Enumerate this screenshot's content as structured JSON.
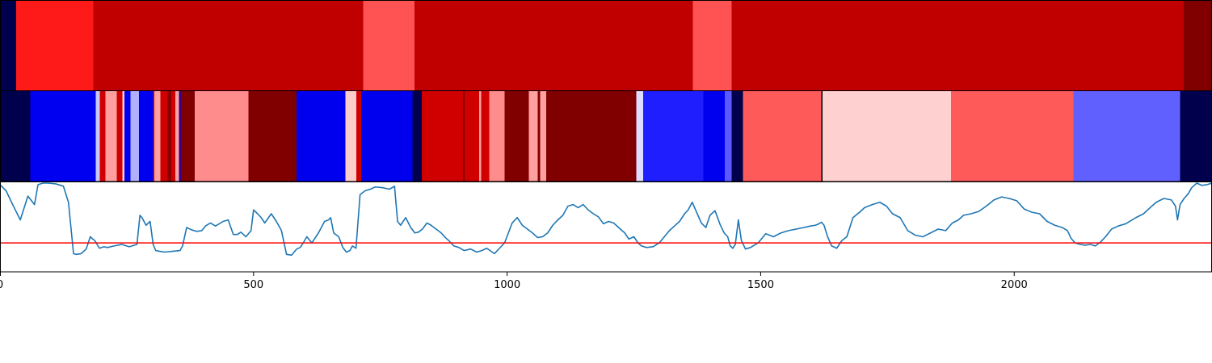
{
  "colors": {
    "line": "#1f77b4",
    "threshold": "#ff0000"
  },
  "chart_data": {
    "type": "heatmap",
    "xlim": [
      0,
      2390
    ],
    "x_ticks": [
      0,
      500,
      1000,
      1500,
      2000
    ],
    "x_tick_labels": [
      "0",
      "500",
      "1000",
      "1500",
      "2000"
    ],
    "strips": [
      {
        "segments": [
          {
            "start": 0,
            "end": 32,
            "color": "#00004c"
          },
          {
            "start": 32,
            "end": 184,
            "color": "#ff1a1a"
          },
          {
            "start": 184,
            "end": 716,
            "color": "#c00000"
          },
          {
            "start": 716,
            "end": 817,
            "color": "#ff5252"
          },
          {
            "start": 817,
            "end": 1366,
            "color": "#c00000"
          },
          {
            "start": 1366,
            "end": 1443,
            "color": "#ff5252"
          },
          {
            "start": 1443,
            "end": 2334,
            "color": "#c00000"
          },
          {
            "start": 2334,
            "end": 2390,
            "color": "#800000"
          }
        ]
      },
      {
        "segments": [
          {
            "start": 0,
            "end": 60,
            "color": "#00004c"
          },
          {
            "start": 60,
            "end": 189,
            "color": "#0000f0"
          },
          {
            "start": 189,
            "end": 197,
            "color": "#c8c8ff"
          },
          {
            "start": 197,
            "end": 208,
            "color": "#d00000"
          },
          {
            "start": 208,
            "end": 230,
            "color": "#ffa0a0"
          },
          {
            "start": 230,
            "end": 241,
            "color": "#d00000"
          },
          {
            "start": 241,
            "end": 245,
            "color": "#ffd0d0"
          },
          {
            "start": 245,
            "end": 257,
            "color": "#0000f0"
          },
          {
            "start": 257,
            "end": 274,
            "color": "#b0b0ff"
          },
          {
            "start": 274,
            "end": 302,
            "color": "#0000f0"
          },
          {
            "start": 302,
            "end": 304,
            "color": "#d00000"
          },
          {
            "start": 304,
            "end": 316,
            "color": "#ffa0a0"
          },
          {
            "start": 316,
            "end": 331,
            "color": "#d00000"
          },
          {
            "start": 331,
            "end": 338,
            "color": "#8a0000"
          },
          {
            "start": 338,
            "end": 346,
            "color": "#d00000"
          },
          {
            "start": 346,
            "end": 353,
            "color": "#ffa0a0"
          },
          {
            "start": 353,
            "end": 356,
            "color": "#0000f0"
          },
          {
            "start": 356,
            "end": 384,
            "color": "#800000"
          },
          {
            "start": 384,
            "end": 490,
            "color": "#ff8c8c"
          },
          {
            "start": 490,
            "end": 585,
            "color": "#800000"
          },
          {
            "start": 585,
            "end": 681,
            "color": "#0000ee"
          },
          {
            "start": 681,
            "end": 703,
            "color": "#ffcccc"
          },
          {
            "start": 703,
            "end": 712,
            "color": "#d00000"
          },
          {
            "start": 712,
            "end": 813,
            "color": "#0000ee"
          },
          {
            "start": 813,
            "end": 832,
            "color": "#00004c"
          },
          {
            "start": 832,
            "end": 913,
            "color": "#d00000"
          },
          {
            "start": 913,
            "end": 916,
            "color": "#800000"
          },
          {
            "start": 916,
            "end": 945,
            "color": "#d00000"
          },
          {
            "start": 945,
            "end": 949,
            "color": "#ffa0a0"
          },
          {
            "start": 949,
            "end": 965,
            "color": "#d00000"
          },
          {
            "start": 965,
            "end": 995,
            "color": "#ff8c8c"
          },
          {
            "start": 995,
            "end": 1043,
            "color": "#800000"
          },
          {
            "start": 1043,
            "end": 1060,
            "color": "#ffa0a0"
          },
          {
            "start": 1060,
            "end": 1065,
            "color": "#800000"
          },
          {
            "start": 1065,
            "end": 1077,
            "color": "#ffa0a0"
          },
          {
            "start": 1077,
            "end": 1255,
            "color": "#800000"
          },
          {
            "start": 1255,
            "end": 1268,
            "color": "#ddddff"
          },
          {
            "start": 1268,
            "end": 1387,
            "color": "#1e1eff"
          },
          {
            "start": 1387,
            "end": 1429,
            "color": "#0000ee"
          },
          {
            "start": 1429,
            "end": 1443,
            "color": "#5a5aff"
          },
          {
            "start": 1443,
            "end": 1465,
            "color": "#00004c"
          },
          {
            "start": 1465,
            "end": 1620,
            "color": "#ff5a5a"
          },
          {
            "start": 1620,
            "end": 1622,
            "color": "#000000"
          },
          {
            "start": 1622,
            "end": 1875,
            "color": "#ffd0d0"
          },
          {
            "start": 1875,
            "end": 2117,
            "color": "#ff5a5a"
          },
          {
            "start": 2117,
            "end": 2327,
            "color": "#6060ff"
          },
          {
            "start": 2327,
            "end": 2390,
            "color": "#00004c"
          }
        ]
      }
    ],
    "line": {
      "ylim": [
        0,
        1
      ],
      "threshold": 0.22,
      "x": [
        0,
        12,
        25,
        40,
        55,
        68,
        75,
        85,
        95,
        110,
        125,
        135,
        145,
        150,
        160,
        170,
        178,
        183,
        187,
        196,
        205,
        212,
        225,
        240,
        255,
        270,
        276,
        280,
        288,
        296,
        302,
        307,
        315,
        325,
        340,
        355,
        360,
        368,
        378,
        388,
        398,
        405,
        415,
        425,
        440,
        450,
        460,
        468,
        475,
        485,
        495,
        500,
        508,
        515,
        522,
        535,
        545,
        555,
        565,
        575,
        585,
        592,
        598,
        605,
        615,
        628,
        640,
        648,
        652,
        658,
        668,
        676,
        683,
        690,
        695,
        702,
        710,
        720,
        730,
        740,
        755,
        768,
        778,
        784,
        790,
        800,
        810,
        818,
        825,
        833,
        842,
        850,
        860,
        870,
        878,
        885,
        895,
        905,
        915,
        928,
        940,
        950,
        960,
        975,
        985,
        995,
        1010,
        1020,
        1030,
        1040,
        1050,
        1060,
        1070,
        1080,
        1090,
        1100,
        1110,
        1120,
        1130,
        1140,
        1150,
        1160,
        1170,
        1180,
        1190,
        1200,
        1210,
        1220,
        1232,
        1240,
        1250,
        1258,
        1265,
        1275,
        1288,
        1300,
        1310,
        1320,
        1330,
        1340,
        1350,
        1357,
        1365,
        1375,
        1383,
        1392,
        1400,
        1410,
        1420,
        1428,
        1435,
        1440,
        1445,
        1450,
        1456,
        1462,
        1470,
        1480,
        1495,
        1510,
        1525,
        1540,
        1555,
        1570,
        1585,
        1598,
        1608,
        1615,
        1620,
        1625,
        1632,
        1640,
        1650,
        1660,
        1670,
        1682,
        1695,
        1705,
        1720,
        1735,
        1748,
        1760,
        1775,
        1790,
        1805,
        1820,
        1835,
        1850,
        1865,
        1878,
        1890,
        1900,
        1915,
        1930,
        1945,
        1960,
        1975,
        1990,
        2005,
        2020,
        2035,
        2050,
        2065,
        2080,
        2095,
        2105,
        2112,
        2120,
        2130,
        2140,
        2150,
        2160,
        2170,
        2180,
        2192,
        2205,
        2220,
        2240,
        2255,
        2268,
        2280,
        2295,
        2310,
        2318,
        2322,
        2327,
        2335,
        2343,
        2350,
        2360,
        2370,
        2380,
        2390
      ],
      "y": [
        0.98,
        0.9,
        0.72,
        0.52,
        0.83,
        0.72,
        0.98,
        1.0,
        1.0,
        0.99,
        0.96,
        0.75,
        0.08,
        0.07,
        0.08,
        0.14,
        0.3,
        0.27,
        0.25,
        0.15,
        0.17,
        0.16,
        0.18,
        0.2,
        0.17,
        0.2,
        0.58,
        0.55,
        0.45,
        0.5,
        0.2,
        0.12,
        0.11,
        0.1,
        0.11,
        0.12,
        0.18,
        0.42,
        0.39,
        0.37,
        0.38,
        0.44,
        0.48,
        0.44,
        0.5,
        0.52,
        0.33,
        0.33,
        0.36,
        0.3,
        0.38,
        0.65,
        0.6,
        0.55,
        0.48,
        0.6,
        0.5,
        0.38,
        0.07,
        0.06,
        0.14,
        0.16,
        0.22,
        0.3,
        0.22,
        0.35,
        0.5,
        0.52,
        0.55,
        0.35,
        0.3,
        0.16,
        0.1,
        0.12,
        0.18,
        0.15,
        0.85,
        0.9,
        0.92,
        0.95,
        0.94,
        0.92,
        0.96,
        0.5,
        0.45,
        0.55,
        0.42,
        0.35,
        0.36,
        0.4,
        0.48,
        0.45,
        0.4,
        0.35,
        0.29,
        0.25,
        0.18,
        0.16,
        0.12,
        0.14,
        0.1,
        0.12,
        0.15,
        0.08,
        0.15,
        0.22,
        0.48,
        0.55,
        0.45,
        0.4,
        0.35,
        0.29,
        0.3,
        0.35,
        0.45,
        0.52,
        0.58,
        0.7,
        0.72,
        0.68,
        0.72,
        0.65,
        0.6,
        0.56,
        0.47,
        0.5,
        0.48,
        0.42,
        0.35,
        0.27,
        0.3,
        0.22,
        0.18,
        0.16,
        0.17,
        0.22,
        0.3,
        0.38,
        0.44,
        0.5,
        0.6,
        0.65,
        0.75,
        0.6,
        0.48,
        0.42,
        0.58,
        0.64,
        0.46,
        0.35,
        0.3,
        0.18,
        0.15,
        0.2,
        0.52,
        0.25,
        0.14,
        0.16,
        0.22,
        0.34,
        0.3,
        0.35,
        0.38,
        0.4,
        0.42,
        0.44,
        0.45,
        0.47,
        0.49,
        0.45,
        0.3,
        0.18,
        0.15,
        0.25,
        0.3,
        0.55,
        0.62,
        0.68,
        0.72,
        0.75,
        0.7,
        0.6,
        0.55,
        0.38,
        0.32,
        0.3,
        0.35,
        0.4,
        0.38,
        0.48,
        0.52,
        0.58,
        0.6,
        0.63,
        0.7,
        0.78,
        0.82,
        0.8,
        0.77,
        0.66,
        0.62,
        0.6,
        0.5,
        0.45,
        0.42,
        0.38,
        0.28,
        0.22,
        0.2,
        0.19,
        0.2,
        0.18,
        0.23,
        0.3,
        0.4,
        0.44,
        0.47,
        0.55,
        0.6,
        0.68,
        0.75,
        0.8,
        0.78,
        0.7,
        0.52,
        0.72,
        0.8,
        0.86,
        0.94,
        1.0,
        0.97,
        0.98,
        1.0
      ]
    }
  }
}
